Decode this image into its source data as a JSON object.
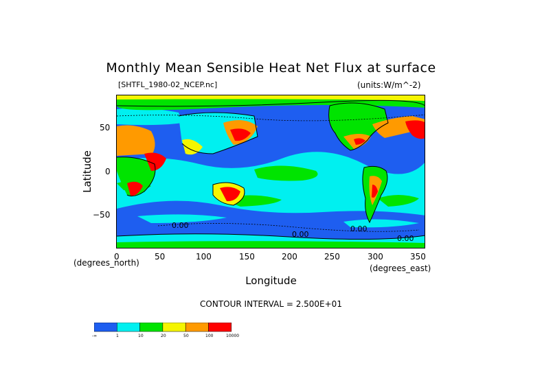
{
  "title": "Monthly Mean Sensible Heat Net Flux at surface",
  "source_file": "[SHTFL_1980-02_NCEP.nc]",
  "units": "(units:W/m^-2)",
  "y_axis": {
    "label": "Latitude",
    "units": "(degrees_north)",
    "ticks": [
      "50",
      "0",
      "−50"
    ],
    "tick_values": [
      50,
      0,
      -50
    ],
    "range": [
      -90,
      90
    ]
  },
  "x_axis": {
    "label": "Longitude",
    "units": "(degrees_east)",
    "ticks": [
      "0",
      "50",
      "100",
      "150",
      "200",
      "250",
      "300",
      "350"
    ],
    "tick_values": [
      0,
      50,
      100,
      150,
      200,
      250,
      300,
      350
    ],
    "range": [
      0,
      360
    ]
  },
  "contour_interval": "CONTOUR INTERVAL = 2.500E+01",
  "contour_labels": [
    "0.00",
    "0.00",
    "0.00",
    "0.00"
  ],
  "colorbar": {
    "colors": [
      "#1e5ef0",
      "#00f0f0",
      "#00e400",
      "#f5f500",
      "#ff9a00",
      "#ff0000"
    ],
    "labels": [
      "-∞",
      "1",
      "10",
      "20",
      "50",
      "100",
      "10000"
    ]
  },
  "colors": {
    "ocean_low": "#1e5ef0",
    "cyan": "#00f0f0",
    "green": "#00e400",
    "yellow": "#f5f500",
    "orange": "#ff9a00",
    "red": "#ff0000"
  }
}
